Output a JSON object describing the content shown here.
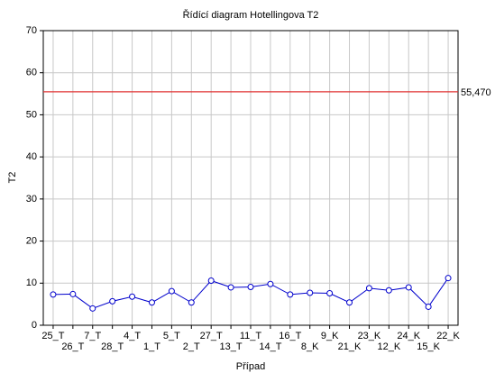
{
  "chart_data": {
    "type": "line",
    "title": "Řídící diagram Hotellingova T2",
    "x_label": "Případ",
    "y_label": "T2",
    "categories": [
      "25_T",
      "26_T",
      "7_T",
      "28_T",
      "4_T",
      "1_T",
      "5_T",
      "2_T",
      "27_T",
      "13_T",
      "11_T",
      "14_T",
      "16_T",
      "8_K",
      "9_K",
      "21_K",
      "23_K",
      "12_K",
      "24_K",
      "15_K",
      "22_K"
    ],
    "series": [
      {
        "color": "#0000cc",
        "values": [
          7.3,
          7.4,
          4.0,
          5.7,
          6.8,
          5.4,
          8.1,
          5.4,
          10.6,
          9.0,
          9.1,
          9.8,
          7.3,
          7.7,
          7.6,
          5.4,
          8.8,
          8.3,
          9.0,
          4.4,
          11.2
        ]
      }
    ],
    "control_limit": {
      "value": 55.47,
      "label": "55,470"
    },
    "control_limit_color": "#e03030",
    "ylim": [
      0,
      70
    ],
    "yticks": [
      0,
      10,
      20,
      30,
      40,
      50,
      60,
      70
    ],
    "grid": true
  }
}
